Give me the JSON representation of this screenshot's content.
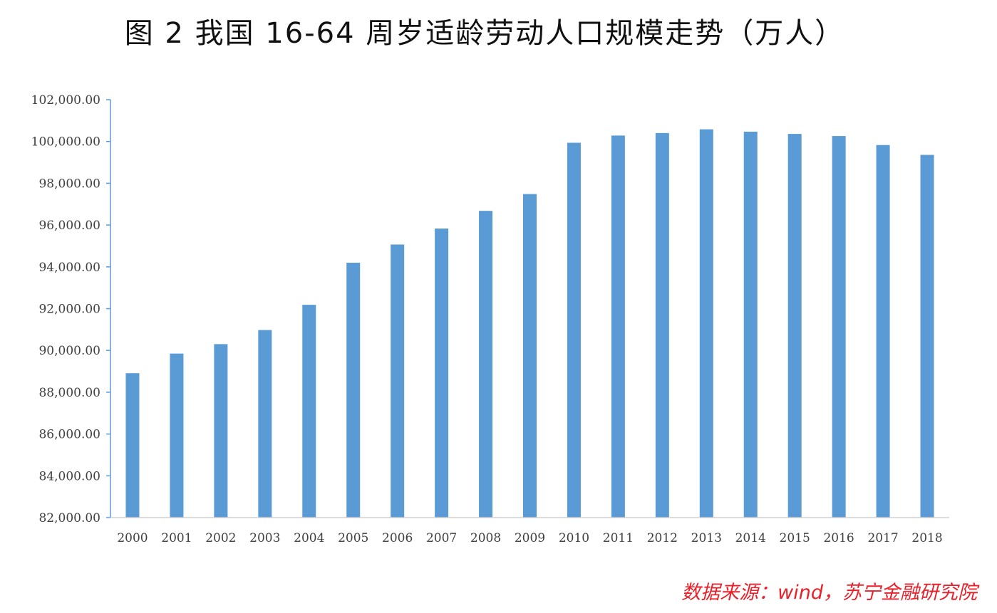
{
  "chart_data": {
    "type": "bar",
    "title": "图 2   我国 16-64 周岁适龄劳动人口规模走势（万人）",
    "xlabel": "",
    "ylabel": "",
    "categories": [
      "2000",
      "2001",
      "2002",
      "2003",
      "2004",
      "2005",
      "2006",
      "2007",
      "2008",
      "2009",
      "2010",
      "2011",
      "2012",
      "2013",
      "2014",
      "2015",
      "2016",
      "2017",
      "2018"
    ],
    "values": [
      88910,
      89849,
      90302,
      90976,
      92184,
      94197,
      95068,
      95833,
      96680,
      97484,
      99938,
      100283,
      100403,
      100582,
      100469,
      100361,
      100260,
      99829,
      99357
    ],
    "ylim": [
      82000,
      102000
    ],
    "yticks": [
      "82,000.00",
      "84,000.00",
      "86,000.00",
      "88,000.00",
      "90,000.00",
      "92,000.00",
      "94,000.00",
      "96,000.00",
      "98,000.00",
      "100,000.00",
      "102,000.00"
    ],
    "bar_color": "#5b9bd5",
    "axis_color": "#5b9bd5",
    "grid": false,
    "legend": "none"
  },
  "source_note": "数据来源：wind，苏宁金融研究院",
  "colors": {
    "source_note": "#e8202a"
  }
}
